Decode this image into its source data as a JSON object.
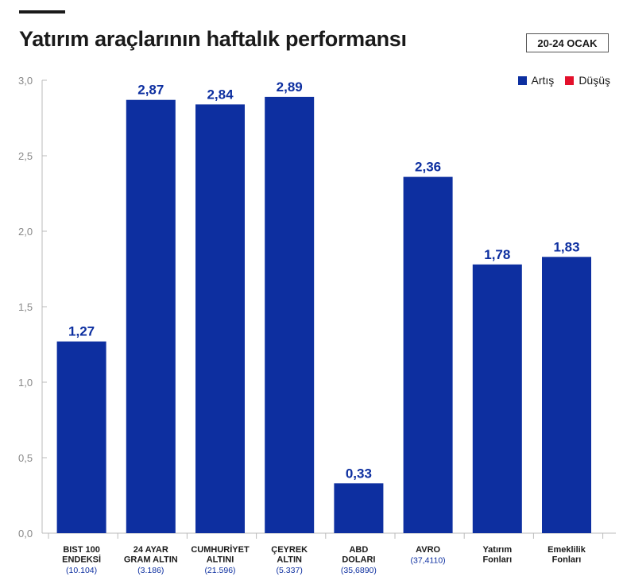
{
  "header": {
    "title": "Yatırım araçlarının haftalık performansı",
    "date_badge": "20-24 OCAK"
  },
  "legend": {
    "items": [
      {
        "label": "Artış",
        "color": "#0d2fa0"
      },
      {
        "label": "Düşüş",
        "color": "#e3102b"
      }
    ]
  },
  "chart_data": {
    "type": "bar",
    "title": "Yatırım araçlarının haftalık performansı",
    "ylim": [
      0,
      3.0
    ],
    "yticks": [
      "0,0",
      "0,5",
      "1,0",
      "1,5",
      "2,0",
      "2,5",
      "3,0"
    ],
    "grid": false,
    "legend_placement": "top-right",
    "categories": [
      {
        "lines": [
          "BIST 100",
          "ENDEKSİ"
        ],
        "sub": "(10.104)"
      },
      {
        "lines": [
          "24 AYAR",
          "GRAM ALTIN"
        ],
        "sub": "(3.186)"
      },
      {
        "lines": [
          "CUMHURİYET",
          "ALTINI"
        ],
        "sub": "(21.596)"
      },
      {
        "lines": [
          "ÇEYREK",
          "ALTIN"
        ],
        "sub": "(5.337)"
      },
      {
        "lines": [
          "ABD",
          "DOLARI"
        ],
        "sub": "(35,6890)"
      },
      {
        "lines": [
          "AVRO"
        ],
        "sub": "(37,4110)"
      },
      {
        "lines": [
          "Yatırım",
          "Fonları"
        ],
        "sub": ""
      },
      {
        "lines": [
          "Emeklilik",
          "Fonları"
        ],
        "sub": ""
      }
    ],
    "values": [
      1.27,
      2.87,
      2.84,
      2.89,
      0.33,
      2.36,
      1.78,
      1.83
    ],
    "value_labels": [
      "1,27",
      "2,87",
      "2,84",
      "2,89",
      "0,33",
      "2,36",
      "1,78",
      "1,83"
    ],
    "bar_color": "#0d2fa0",
    "axis_color": "#bbbbbb"
  }
}
